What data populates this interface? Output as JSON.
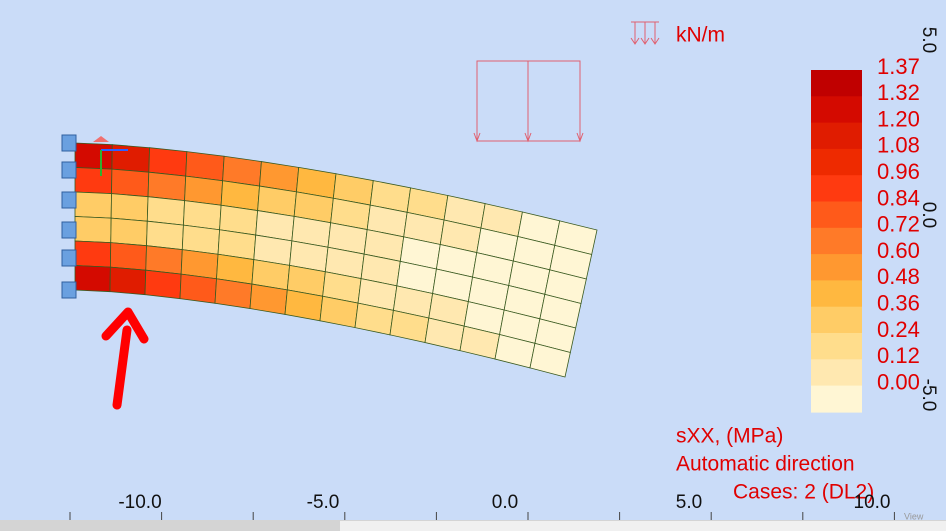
{
  "toolbar": {
    "load_unit": "kN/m"
  },
  "legend": {
    "values": [
      "1.37",
      "1.32",
      "1.20",
      "1.08",
      "0.96",
      "0.84",
      "0.72",
      "0.60",
      "0.48",
      "0.36",
      "0.24",
      "0.12",
      "0.00"
    ],
    "quantity": "sXX, (MPa)",
    "direction": "Automatic direction",
    "cases": "Cases: 2 (DL2)"
  },
  "axis": {
    "x_labels": [
      "-10.0",
      "-5.0",
      "0.0",
      "5.0",
      "10.0"
    ],
    "y_labels": [
      "5.0",
      "0.0",
      "-5.0"
    ]
  },
  "status": {
    "view": "View"
  }
}
